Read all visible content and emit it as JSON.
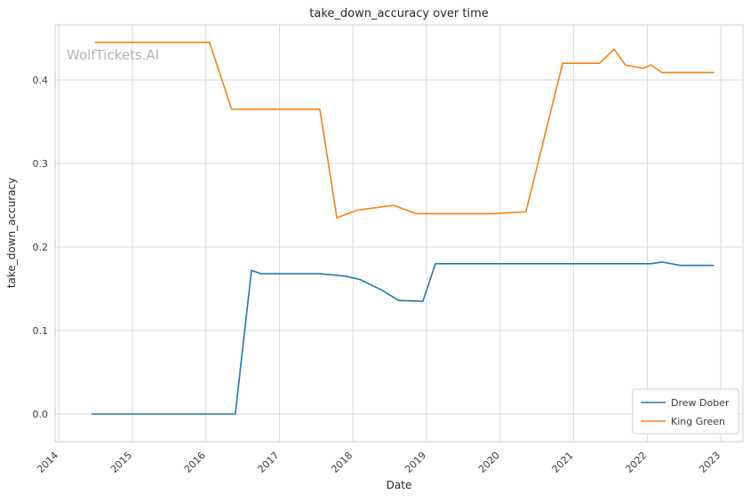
{
  "watermark": "WolfTickets.AI",
  "colors": {
    "background": "#ffffff",
    "grid": "#d9d9d9",
    "axis_border": "#cccccc",
    "text": "#262626",
    "tick_text": "#3a3a3a",
    "watermark": "#b3b3b3",
    "legend_border": "#cccccc",
    "legend_background": "#ffffff"
  },
  "chart_data": {
    "type": "line",
    "title": "take_down_accuracy over time",
    "xlabel": "Date",
    "ylabel": "take_down_accuracy",
    "xlim": [
      2013.95,
      2023.3
    ],
    "ylim": [
      -0.033,
      0.466
    ],
    "xticks": [
      2014,
      2015,
      2016,
      2017,
      2018,
      2019,
      2020,
      2021,
      2022,
      2023
    ],
    "yticks": [
      0.0,
      0.1,
      0.2,
      0.3,
      0.4
    ],
    "grid": true,
    "legend_position": "lower right",
    "legend_entries": [
      "Drew Dober",
      "King Green"
    ],
    "series": [
      {
        "name": "Drew Dober",
        "color": "#1f77b4",
        "x": [
          2014.45,
          2016.4,
          2016.62,
          2016.75,
          2017.55,
          2017.9,
          2018.1,
          2018.4,
          2018.62,
          2018.95,
          2019.12,
          2022.05,
          2022.2,
          2022.45,
          2022.9
        ],
        "y": [
          0.0,
          0.0,
          0.172,
          0.168,
          0.168,
          0.165,
          0.161,
          0.148,
          0.136,
          0.135,
          0.18,
          0.18,
          0.182,
          0.178,
          0.178
        ]
      },
      {
        "name": "King Green",
        "color": "#ff7f0e",
        "x": [
          2014.5,
          2016.05,
          2016.35,
          2017.55,
          2017.78,
          2018.05,
          2018.55,
          2018.85,
          2019.9,
          2020.35,
          2020.85,
          2021.35,
          2021.55,
          2021.7,
          2021.95,
          2022.05,
          2022.2,
          2022.9
        ],
        "y": [
          0.445,
          0.445,
          0.365,
          0.365,
          0.235,
          0.244,
          0.25,
          0.24,
          0.24,
          0.242,
          0.42,
          0.42,
          0.437,
          0.418,
          0.414,
          0.418,
          0.409,
          0.409
        ]
      }
    ]
  }
}
